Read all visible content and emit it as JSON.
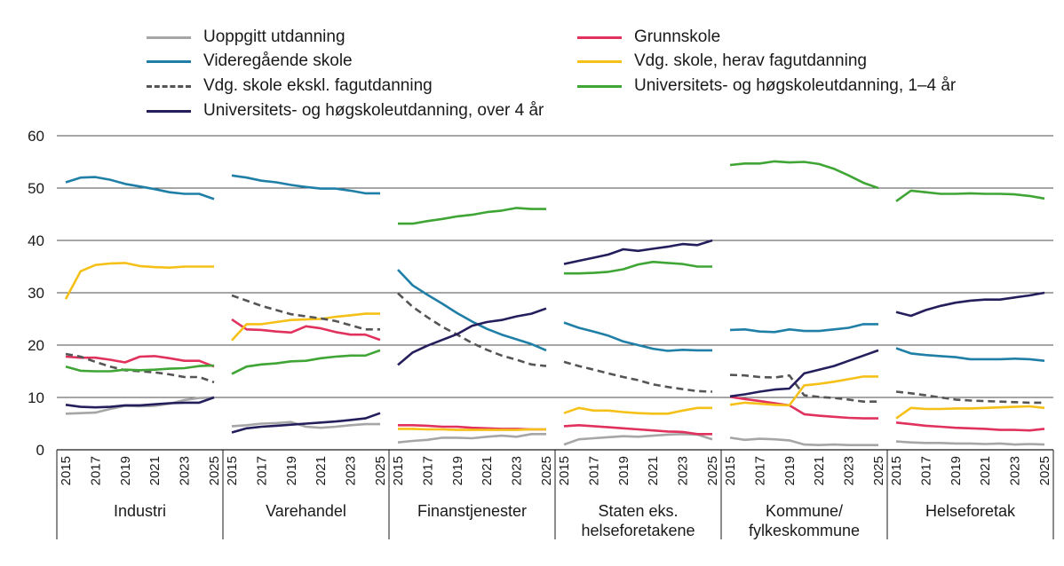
{
  "chart_data": {
    "type": "line",
    "ylim": [
      0,
      60
    ],
    "yticks": [
      "0",
      "10",
      "20",
      "30",
      "40",
      "50",
      "60"
    ],
    "xticks": [
      "2015",
      "2017",
      "2019",
      "2021",
      "2023",
      "2025"
    ],
    "x": [
      2015,
      2016,
      2017,
      2018,
      2019,
      2020,
      2021,
      2022,
      2023,
      2024,
      2025
    ],
    "grid": "horizontal",
    "legend_position": "top",
    "series_styles": [
      {
        "name": "Uoppgitt utdanning",
        "color": "#a6a6a6",
        "dash": "solid"
      },
      {
        "name": "Grunnskole",
        "color": "#e0325d",
        "dash": "solid"
      },
      {
        "name": "Videregående skole",
        "color": "#1f7fa6",
        "dash": "solid"
      },
      {
        "name": "Vdg. skole, herav fagutdanning",
        "color": "#f5c018",
        "dash": "solid"
      },
      {
        "name": "Vdg. skole ekskl. fagutdanning",
        "color": "#555555",
        "dash": "dashed"
      },
      {
        "name": "Universitets- og høgskoleutdanning, 1–4 år",
        "color": "#3fa535",
        "dash": "solid"
      },
      {
        "name": "Universitets- og høgskoleutdanning, over 4 år",
        "color": "#241f5c",
        "dash": "solid"
      }
    ],
    "panels": [
      {
        "label": [
          "Industri"
        ],
        "series": [
          {
            "name": "Uoppgitt utdanning",
            "values": [
              6.9,
              7.0,
              7.1,
              7.8,
              8.4,
              8.3,
              8.4,
              8.8,
              9.5,
              9.9,
              10.0
            ]
          },
          {
            "name": "Grunnskole",
            "values": [
              17.8,
              17.6,
              17.6,
              17.2,
              16.7,
              17.8,
              17.9,
              17.5,
              17.0,
              17.0,
              15.9
            ]
          },
          {
            "name": "Videregående skole",
            "values": [
              51.1,
              52.0,
              52.1,
              51.6,
              50.8,
              50.3,
              49.8,
              49.2,
              48.9,
              48.9,
              47.9
            ]
          },
          {
            "name": "Vdg. skole, herav fagutdanning",
            "values": [
              28.8,
              34.1,
              35.3,
              35.6,
              35.7,
              35.1,
              34.9,
              34.8,
              35.0,
              35.0,
              35.0
            ]
          },
          {
            "name": "Vdg. skole ekskl. fagutdanning",
            "values": [
              18.3,
              17.8,
              16.8,
              15.9,
              15.2,
              15.0,
              14.8,
              14.4,
              13.9,
              13.9,
              12.9
            ]
          },
          {
            "name": "Universitets- og høgskoleutdanning, 1–4 år",
            "values": [
              15.9,
              15.1,
              15.0,
              15.0,
              15.3,
              15.2,
              15.3,
              15.5,
              15.6,
              16.0,
              16.1
            ]
          },
          {
            "name": "Universitets- og høgskoleutdanning, over 4 år",
            "values": [
              8.6,
              8.2,
              8.1,
              8.2,
              8.5,
              8.5,
              8.7,
              8.9,
              9.0,
              9.0,
              10.0
            ]
          }
        ]
      },
      {
        "label": [
          "Varehandel"
        ],
        "series": [
          {
            "name": "Uoppgitt utdanning",
            "values": [
              4.5,
              4.7,
              5.0,
              5.1,
              5.3,
              4.4,
              4.2,
              4.4,
              4.7,
              4.9,
              4.9
            ]
          },
          {
            "name": "Grunnskole",
            "values": [
              24.9,
              23.0,
              22.9,
              22.6,
              22.4,
              23.6,
              23.2,
              22.5,
              22.0,
              22.0,
              21.0
            ]
          },
          {
            "name": "Videregående skole",
            "values": [
              52.4,
              52.0,
              51.4,
              51.1,
              50.6,
              50.2,
              49.9,
              49.9,
              49.5,
              49.0,
              49.0
            ]
          },
          {
            "name": "Vdg. skole, herav fagutdanning",
            "values": [
              20.9,
              24.0,
              24.0,
              24.4,
              24.8,
              24.9,
              25.0,
              25.4,
              25.7,
              26.0,
              26.0
            ]
          },
          {
            "name": "Vdg. skole ekskl. fagutdanning",
            "values": [
              29.5,
              28.5,
              27.5,
              26.7,
              25.9,
              25.5,
              25.1,
              24.6,
              23.8,
              23.0,
              23.0
            ]
          },
          {
            "name": "Universitets- og høgskoleutdanning, 1–4 år",
            "values": [
              14.5,
              15.9,
              16.3,
              16.5,
              16.9,
              17.0,
              17.5,
              17.8,
              18.0,
              18.0,
              19.0
            ]
          },
          {
            "name": "Universitets- og høgskoleutdanning, over 4 år",
            "values": [
              3.3,
              4.1,
              4.4,
              4.6,
              4.8,
              5.0,
              5.2,
              5.4,
              5.7,
              6.0,
              7.0
            ]
          }
        ]
      },
      {
        "label": [
          "Finanstjenester"
        ],
        "series": [
          {
            "name": "Uoppgitt utdanning",
            "values": [
              1.4,
              1.7,
              1.9,
              2.3,
              2.3,
              2.2,
              2.5,
              2.7,
              2.5,
              3.0,
              3.0
            ]
          },
          {
            "name": "Grunnskole",
            "values": [
              4.7,
              4.7,
              4.6,
              4.4,
              4.4,
              4.2,
              4.1,
              4.0,
              4.0,
              3.9,
              3.9
            ]
          },
          {
            "name": "Videregående skole",
            "values": [
              34.4,
              31.4,
              29.6,
              27.9,
              26.1,
              24.5,
              23.1,
              22.0,
              21.1,
              20.2,
              19.0
            ]
          },
          {
            "name": "Vdg. skole, herav fagutdanning",
            "values": [
              4.0,
              4.0,
              3.9,
              3.9,
              3.8,
              3.8,
              3.8,
              3.8,
              3.8,
              3.9,
              3.9
            ]
          },
          {
            "name": "Vdg. skole ekskl. fagutdanning",
            "values": [
              29.9,
              27.3,
              25.3,
              23.5,
              22.0,
              20.4,
              19.1,
              18.0,
              17.2,
              16.3,
              16.0
            ]
          },
          {
            "name": "Universitets- og høgskoleutdanning, 1–4 år",
            "values": [
              43.2,
              43.2,
              43.7,
              44.1,
              44.6,
              44.9,
              45.4,
              45.7,
              46.2,
              46.0,
              46.0
            ]
          },
          {
            "name": "Universitets- og høgskoleutdanning, over 4 år",
            "values": [
              16.2,
              18.6,
              19.9,
              21.0,
              22.1,
              23.7,
              24.4,
              24.8,
              25.5,
              26.0,
              27.0
            ]
          }
        ]
      },
      {
        "label": [
          "Staten eks.",
          "helseforetakene"
        ],
        "series": [
          {
            "name": "Uoppgitt utdanning",
            "values": [
              1.0,
              2.0,
              2.2,
              2.4,
              2.6,
              2.5,
              2.7,
              2.9,
              3.0,
              2.9,
              2.0
            ]
          },
          {
            "name": "Grunnskole",
            "values": [
              4.5,
              4.7,
              4.5,
              4.3,
              4.1,
              3.9,
              3.7,
              3.5,
              3.4,
              3.0,
              3.0
            ]
          },
          {
            "name": "Videregående skole",
            "values": [
              24.3,
              23.3,
              22.6,
              21.8,
              20.7,
              20.0,
              19.3,
              18.9,
              19.1,
              19.0,
              19.0
            ]
          },
          {
            "name": "Vdg. skole, herav fagutdanning",
            "values": [
              7.0,
              8.0,
              7.5,
              7.5,
              7.2,
              7.0,
              6.9,
              6.9,
              7.5,
              8.0,
              8.0
            ]
          },
          {
            "name": "Vdg. skole ekskl. fagutdanning",
            "values": [
              16.8,
              16.0,
              15.3,
              14.6,
              13.9,
              13.3,
              12.5,
              12.0,
              11.6,
              11.2,
              11.1
            ]
          },
          {
            "name": "Universitets- og høgskoleutdanning, 1–4 år",
            "values": [
              33.7,
              33.7,
              33.8,
              34.0,
              34.5,
              35.4,
              35.9,
              35.7,
              35.5,
              35.0,
              35.0
            ]
          },
          {
            "name": "Universitets- og høgskoleutdanning, over 4 år",
            "values": [
              35.5,
              36.1,
              36.7,
              37.3,
              38.3,
              38.0,
              38.4,
              38.8,
              39.3,
              39.1,
              40.0
            ]
          }
        ]
      },
      {
        "label": [
          "Kommune/",
          "fylkeskommune"
        ],
        "series": [
          {
            "name": "Uoppgitt utdanning",
            "values": [
              2.3,
              1.9,
              2.1,
              2.0,
              1.8,
              1.0,
              0.9,
              1.0,
              0.9,
              0.9,
              0.9
            ]
          },
          {
            "name": "Grunnskole",
            "values": [
              10.1,
              9.7,
              9.3,
              8.9,
              8.5,
              6.8,
              6.5,
              6.3,
              6.1,
              6.0,
              6.0
            ]
          },
          {
            "name": "Videregående skole",
            "values": [
              22.9,
              23.0,
              22.6,
              22.5,
              23.0,
              22.7,
              22.7,
              23.0,
              23.3,
              24.0,
              24.0
            ]
          },
          {
            "name": "Vdg. skole, herav fagutdanning",
            "values": [
              8.6,
              9.0,
              8.8,
              8.6,
              8.5,
              12.3,
              12.6,
              13.0,
              13.5,
              14.0,
              14.0
            ]
          },
          {
            "name": "Vdg. skole ekskl. fagutdanning",
            "values": [
              14.3,
              14.2,
              13.9,
              13.8,
              14.2,
              10.4,
              10.1,
              9.9,
              9.6,
              9.2,
              9.2
            ]
          },
          {
            "name": "Universitets- og høgskoleutdanning, 1–4 år",
            "values": [
              54.4,
              54.7,
              54.7,
              55.1,
              54.9,
              55.0,
              54.6,
              53.7,
              52.4,
              51.0,
              50.0
            ]
          },
          {
            "name": "Universitets- og høgskoleutdanning, over 4 år",
            "values": [
              10.2,
              10.6,
              11.1,
              11.5,
              11.7,
              14.6,
              15.3,
              16.0,
              17.0,
              18.0,
              19.0
            ]
          }
        ]
      },
      {
        "label": [
          "Helseforetak"
        ],
        "series": [
          {
            "name": "Uoppgitt utdanning",
            "values": [
              1.6,
              1.4,
              1.3,
              1.3,
              1.2,
              1.2,
              1.1,
              1.2,
              1.0,
              1.1,
              1.0
            ]
          },
          {
            "name": "Grunnskole",
            "values": [
              5.2,
              4.9,
              4.6,
              4.4,
              4.2,
              4.1,
              4.0,
              3.8,
              3.8,
              3.7,
              4.0
            ]
          },
          {
            "name": "Videregående skole",
            "values": [
              19.4,
              18.4,
              18.1,
              17.9,
              17.7,
              17.3,
              17.3,
              17.3,
              17.4,
              17.3,
              17.0
            ]
          },
          {
            "name": "Vdg. skole, herav fagutdanning",
            "values": [
              6.0,
              8.0,
              7.8,
              7.8,
              7.9,
              7.9,
              8.0,
              8.1,
              8.2,
              8.3,
              8.0
            ]
          },
          {
            "name": "Vdg. skole ekskl. fagutdanning",
            "values": [
              11.1,
              10.8,
              10.4,
              10.0,
              9.6,
              9.4,
              9.3,
              9.2,
              9.1,
              9.0,
              9.0
            ]
          },
          {
            "name": "Universitets- og høgskoleutdanning, 1–4 år",
            "values": [
              47.5,
              49.5,
              49.2,
              48.9,
              48.9,
              49.0,
              48.9,
              48.9,
              48.8,
              48.5,
              48.0
            ]
          },
          {
            "name": "Universitets- og høgskoleutdanning, over 4 år",
            "values": [
              26.3,
              25.6,
              26.7,
              27.5,
              28.1,
              28.5,
              28.7,
              28.7,
              29.1,
              29.5,
              30.0
            ]
          }
        ]
      }
    ]
  }
}
